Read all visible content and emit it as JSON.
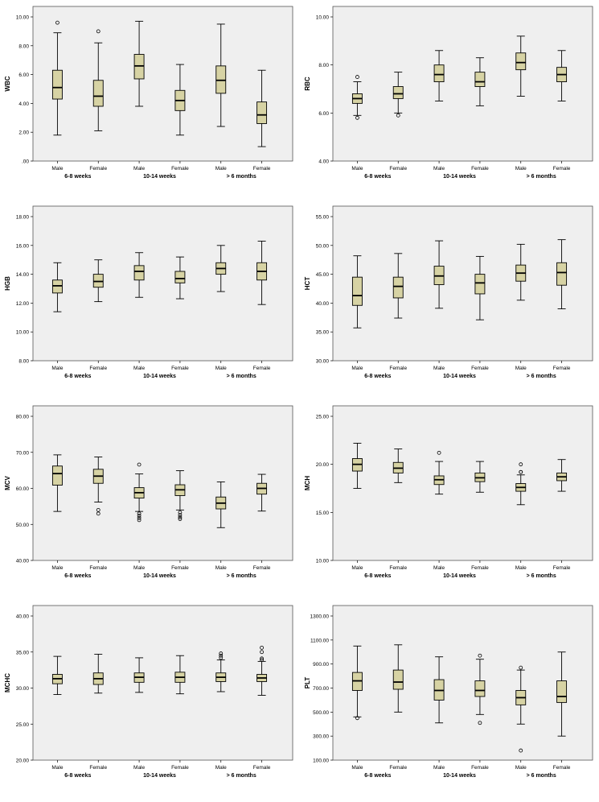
{
  "colors": {
    "plot_background": "#efefef",
    "box_fill": "#d7d3a4",
    "box_stroke": "#000000",
    "text": "#000000"
  },
  "chart_data": [
    {
      "type": "box",
      "ylabel": "WBC",
      "ylim": [
        0,
        10
      ],
      "yticks": [
        0,
        2,
        4,
        6,
        8,
        10
      ],
      "ytick_labels": [
        ".00",
        "2.00",
        "4.00",
        "6.00",
        "8.00",
        "10.00"
      ],
      "groups": [
        "6-8 weeks",
        "10-14 weeks",
        "> 6 months"
      ],
      "categories": [
        "Male",
        "Female",
        "Male",
        "Female",
        "Male",
        "Female"
      ],
      "boxes": [
        {
          "whisker_low": 1.8,
          "q1": 4.3,
          "median": 5.1,
          "q3": 6.3,
          "whisker_high": 8.9,
          "outliers": [
            9.6
          ]
        },
        {
          "whisker_low": 2.1,
          "q1": 3.8,
          "median": 4.5,
          "q3": 5.6,
          "whisker_high": 8.2,
          "outliers": [
            9.0
          ]
        },
        {
          "whisker_low": 3.8,
          "q1": 5.7,
          "median": 6.6,
          "q3": 7.4,
          "whisker_high": 9.7,
          "outliers": []
        },
        {
          "whisker_low": 1.8,
          "q1": 3.5,
          "median": 4.2,
          "q3": 4.9,
          "whisker_high": 6.7,
          "outliers": []
        },
        {
          "whisker_low": 2.4,
          "q1": 4.7,
          "median": 5.6,
          "q3": 6.6,
          "whisker_high": 9.5,
          "outliers": []
        },
        {
          "whisker_low": 1.0,
          "q1": 2.6,
          "median": 3.2,
          "q3": 4.1,
          "whisker_high": 6.3,
          "outliers": []
        }
      ]
    },
    {
      "type": "box",
      "ylabel": "RBC",
      "ylim": [
        4,
        10
      ],
      "yticks": [
        4,
        6,
        8,
        10
      ],
      "ytick_labels": [
        "4.00",
        "6.00",
        "8.00",
        "10.00"
      ],
      "groups": [
        "6-8 weeks",
        "10-14 weeks",
        "> 6 months"
      ],
      "categories": [
        "Male",
        "Female",
        "Male",
        "Female",
        "Male",
        "Female"
      ],
      "boxes": [
        {
          "whisker_low": 5.9,
          "q1": 6.4,
          "median": 6.6,
          "q3": 6.8,
          "whisker_high": 7.3,
          "outliers": [
            7.5,
            5.8
          ]
        },
        {
          "whisker_low": 6.0,
          "q1": 6.6,
          "median": 6.8,
          "q3": 7.1,
          "whisker_high": 7.7,
          "outliers": [
            5.9
          ]
        },
        {
          "whisker_low": 6.5,
          "q1": 7.3,
          "median": 7.6,
          "q3": 8.0,
          "whisker_high": 8.6,
          "outliers": []
        },
        {
          "whisker_low": 6.3,
          "q1": 7.1,
          "median": 7.3,
          "q3": 7.7,
          "whisker_high": 8.3,
          "outliers": []
        },
        {
          "whisker_low": 6.7,
          "q1": 7.8,
          "median": 8.1,
          "q3": 8.5,
          "whisker_high": 9.2,
          "outliers": []
        },
        {
          "whisker_low": 6.5,
          "q1": 7.3,
          "median": 7.6,
          "q3": 7.9,
          "whisker_high": 8.6,
          "outliers": []
        }
      ]
    },
    {
      "type": "box",
      "ylabel": "HGB",
      "ylim": [
        8,
        18
      ],
      "yticks": [
        8,
        10,
        12,
        14,
        16,
        18
      ],
      "ytick_labels": [
        "8.00",
        "10.00",
        "12.00",
        "14.00",
        "16.00",
        "18.00"
      ],
      "groups": [
        "6-8 weeks",
        "10-14 weeks",
        "> 6 months"
      ],
      "categories": [
        "Male",
        "Female",
        "Male",
        "Female",
        "Male",
        "Female"
      ],
      "boxes": [
        {
          "whisker_low": 11.4,
          "q1": 12.7,
          "median": 13.2,
          "q3": 13.6,
          "whisker_high": 14.8,
          "outliers": []
        },
        {
          "whisker_low": 12.1,
          "q1": 13.1,
          "median": 13.5,
          "q3": 14.0,
          "whisker_high": 15.0,
          "outliers": []
        },
        {
          "whisker_low": 12.4,
          "q1": 13.6,
          "median": 14.2,
          "q3": 14.6,
          "whisker_high": 15.5,
          "outliers": []
        },
        {
          "whisker_low": 12.3,
          "q1": 13.4,
          "median": 13.7,
          "q3": 14.2,
          "whisker_high": 15.2,
          "outliers": []
        },
        {
          "whisker_low": 12.8,
          "q1": 14.0,
          "median": 14.4,
          "q3": 14.8,
          "whisker_high": 16.0,
          "outliers": []
        },
        {
          "whisker_low": 11.9,
          "q1": 13.6,
          "median": 14.2,
          "q3": 14.8,
          "whisker_high": 16.3,
          "outliers": []
        }
      ]
    },
    {
      "type": "box",
      "ylabel": "HCT",
      "ylim": [
        30,
        55
      ],
      "yticks": [
        30,
        35,
        40,
        45,
        50,
        55
      ],
      "ytick_labels": [
        "30.00",
        "35.00",
        "40.00",
        "45.00",
        "50.00",
        "55.00"
      ],
      "groups": [
        "6-8 weeks",
        "10-14 weeks",
        "> 6 months"
      ],
      "categories": [
        "Male",
        "Female",
        "Male",
        "Female",
        "Male",
        "Female"
      ],
      "boxes": [
        {
          "whisker_low": 35.7,
          "q1": 39.6,
          "median": 41.3,
          "q3": 44.5,
          "whisker_high": 48.2,
          "outliers": []
        },
        {
          "whisker_low": 37.4,
          "q1": 40.9,
          "median": 42.9,
          "q3": 44.5,
          "whisker_high": 48.6,
          "outliers": []
        },
        {
          "whisker_low": 39.1,
          "q1": 43.2,
          "median": 44.7,
          "q3": 46.4,
          "whisker_high": 50.8,
          "outliers": []
        },
        {
          "whisker_low": 37.1,
          "q1": 41.6,
          "median": 43.5,
          "q3": 45.0,
          "whisker_high": 48.1,
          "outliers": []
        },
        {
          "whisker_low": 40.5,
          "q1": 43.8,
          "median": 45.2,
          "q3": 46.6,
          "whisker_high": 50.2,
          "outliers": []
        },
        {
          "whisker_low": 39.0,
          "q1": 43.1,
          "median": 45.3,
          "q3": 47.0,
          "whisker_high": 51.0,
          "outliers": []
        }
      ]
    },
    {
      "type": "box",
      "ylabel": "MCV",
      "ylim": [
        40,
        80
      ],
      "yticks": [
        40,
        50,
        60,
        70,
        80
      ],
      "ytick_labels": [
        "40.00",
        "50.00",
        "60.00",
        "70.00",
        "80.00"
      ],
      "groups": [
        "6-8 weeks",
        "10-14 weeks",
        "> 6 months"
      ],
      "categories": [
        "Male",
        "Female",
        "Male",
        "Female",
        "Male",
        "Female"
      ],
      "boxes": [
        {
          "whisker_low": 53.6,
          "q1": 60.9,
          "median": 64.1,
          "q3": 66.2,
          "whisker_high": 69.3,
          "outliers": []
        },
        {
          "whisker_low": 56.2,
          "q1": 61.4,
          "median": 63.4,
          "q3": 65.3,
          "whisker_high": 68.7,
          "outliers": [
            54.0,
            53.0
          ]
        },
        {
          "whisker_low": 53.6,
          "q1": 57.3,
          "median": 58.8,
          "q3": 60.2,
          "whisker_high": 64.0,
          "outliers": [
            66.6,
            53.0,
            52.4,
            51.8,
            51.2
          ]
        },
        {
          "whisker_low": 54.0,
          "q1": 58.0,
          "median": 59.6,
          "q3": 61.0,
          "whisker_high": 64.9,
          "outliers": [
            53.3,
            52.6,
            52.0,
            51.5
          ]
        },
        {
          "whisker_low": 49.1,
          "q1": 54.3,
          "median": 55.9,
          "q3": 57.6,
          "whisker_high": 61.8,
          "outliers": []
        },
        {
          "whisker_low": 53.7,
          "q1": 58.4,
          "median": 60.0,
          "q3": 61.4,
          "whisker_high": 63.9,
          "outliers": []
        }
      ]
    },
    {
      "type": "box",
      "ylabel": "MCH",
      "ylim": [
        10,
        25
      ],
      "yticks": [
        10,
        15,
        20,
        25
      ],
      "ytick_labels": [
        "10.00",
        "15.00",
        "20.00",
        "25.00"
      ],
      "groups": [
        "6-8 weeks",
        "10-14 weeks",
        "> 6 months"
      ],
      "categories": [
        "Male",
        "Female",
        "Male",
        "Female",
        "Male",
        "Female"
      ],
      "boxes": [
        {
          "whisker_low": 17.5,
          "q1": 19.3,
          "median": 20.0,
          "q3": 20.6,
          "whisker_high": 22.2,
          "outliers": []
        },
        {
          "whisker_low": 18.1,
          "q1": 19.1,
          "median": 19.6,
          "q3": 20.2,
          "whisker_high": 21.6,
          "outliers": []
        },
        {
          "whisker_low": 16.9,
          "q1": 17.9,
          "median": 18.4,
          "q3": 18.8,
          "whisker_high": 20.3,
          "outliers": [
            21.2
          ]
        },
        {
          "whisker_low": 17.1,
          "q1": 18.2,
          "median": 18.6,
          "q3": 19.1,
          "whisker_high": 20.3,
          "outliers": []
        },
        {
          "whisker_low": 15.8,
          "q1": 17.2,
          "median": 17.6,
          "q3": 18.0,
          "whisker_high": 18.9,
          "outliers": [
            20.0,
            19.2,
            19.2
          ]
        },
        {
          "whisker_low": 17.2,
          "q1": 18.3,
          "median": 18.7,
          "q3": 19.1,
          "whisker_high": 20.5,
          "outliers": []
        }
      ]
    },
    {
      "type": "box",
      "ylabel": "MCHC",
      "ylim": [
        20,
        40
      ],
      "yticks": [
        20,
        25,
        30,
        35,
        40
      ],
      "ytick_labels": [
        "20.00",
        "25.00",
        "30.00",
        "35.00",
        "40.00"
      ],
      "groups": [
        "6-8 weeks",
        "10-14 weeks",
        "> 6 months"
      ],
      "categories": [
        "Male",
        "Female",
        "Male",
        "Female",
        "Male",
        "Female"
      ],
      "boxes": [
        {
          "whisker_low": 29.1,
          "q1": 30.6,
          "median": 31.3,
          "q3": 31.9,
          "whisker_high": 34.4,
          "outliers": []
        },
        {
          "whisker_low": 29.3,
          "q1": 30.5,
          "median": 31.3,
          "q3": 32.1,
          "whisker_high": 34.7,
          "outliers": []
        },
        {
          "whisker_low": 29.4,
          "q1": 30.8,
          "median": 31.5,
          "q3": 32.1,
          "whisker_high": 34.2,
          "outliers": []
        },
        {
          "whisker_low": 29.2,
          "q1": 30.8,
          "median": 31.5,
          "q3": 32.2,
          "whisker_high": 34.5,
          "outliers": []
        },
        {
          "whisker_low": 29.5,
          "q1": 30.9,
          "median": 31.5,
          "q3": 32.1,
          "whisker_high": 33.9,
          "outliers": [
            34.8,
            34.5,
            34.2
          ]
        },
        {
          "whisker_low": 29.0,
          "q1": 30.9,
          "median": 31.4,
          "q3": 31.9,
          "whisker_high": 33.7,
          "outliers": [
            35.6,
            35.0,
            34.1,
            33.9
          ]
        }
      ]
    },
    {
      "type": "box",
      "ylabel": "PLT",
      "ylim": [
        100,
        1300
      ],
      "yticks": [
        100,
        300,
        500,
        700,
        900,
        1100,
        1300
      ],
      "ytick_labels": [
        "100.00",
        "300.00",
        "500.00",
        "700.00",
        "900.00",
        "1100.00",
        "1300.00"
      ],
      "groups": [
        "6-8 weeks",
        "10-14 weeks",
        "> 6 months"
      ],
      "categories": [
        "Male",
        "Female",
        "Male",
        "Female",
        "Male",
        "Female"
      ],
      "boxes": [
        {
          "whisker_low": 460,
          "q1": 680,
          "median": 760,
          "q3": 830,
          "whisker_high": 1050,
          "outliers": [
            450
          ]
        },
        {
          "whisker_low": 500,
          "q1": 690,
          "median": 750,
          "q3": 850,
          "whisker_high": 1060,
          "outliers": []
        },
        {
          "whisker_low": 410,
          "q1": 600,
          "median": 680,
          "q3": 770,
          "whisker_high": 960,
          "outliers": []
        },
        {
          "whisker_low": 480,
          "q1": 630,
          "median": 680,
          "q3": 760,
          "whisker_high": 940,
          "outliers": [
            970,
            410
          ]
        },
        {
          "whisker_low": 400,
          "q1": 560,
          "median": 620,
          "q3": 680,
          "whisker_high": 850,
          "outliers": [
            870,
            180
          ]
        },
        {
          "whisker_low": 300,
          "q1": 580,
          "median": 630,
          "q3": 760,
          "whisker_high": 1000,
          "outliers": []
        }
      ]
    }
  ]
}
